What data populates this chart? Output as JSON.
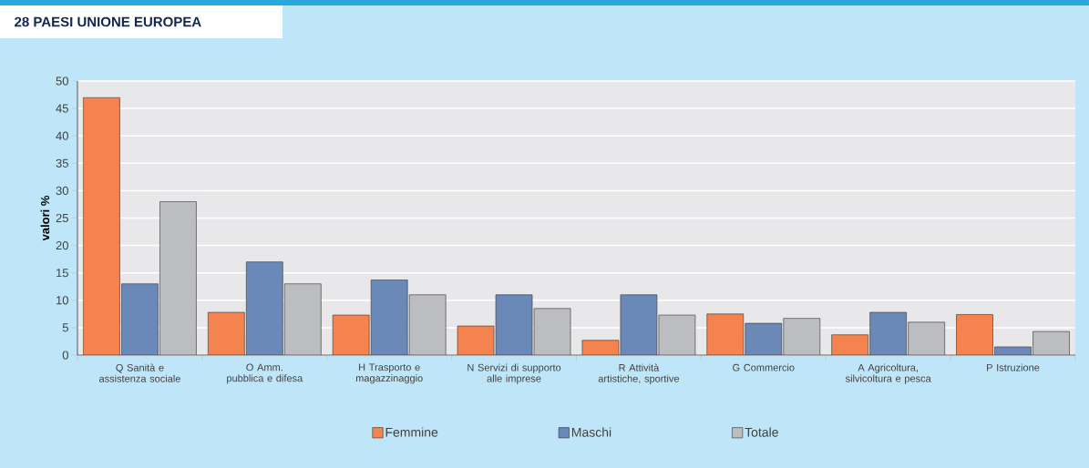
{
  "chart_data": {
    "type": "bar",
    "title": "28 PAESI UNIONE EUROPEA",
    "ylabel": "valori %",
    "categories": [
      "Q Sanità e assistenza sociale",
      "O Amm. pubblica e difesa",
      "H Trasporto e magazzinaggio",
      "N Servizi di supporto alle imprese",
      "R Attività artistiche, sportive",
      "G Commercio",
      "A Agricoltura, silvicoltura e pesca",
      "P Istruzione"
    ],
    "series": [
      {
        "name": "Femmine",
        "color": "#f4834f",
        "values": [
          47,
          7.8,
          7.3,
          5.3,
          2.7,
          7.5,
          3.7,
          7.4
        ]
      },
      {
        "name": "Maschi",
        "color": "#6b89b8",
        "values": [
          13,
          17,
          13.7,
          11,
          11,
          5.8,
          7.8,
          1.5
        ]
      },
      {
        "name": "Totale",
        "color": "#bcbdc1",
        "values": [
          28,
          13,
          11,
          8.5,
          7.3,
          6.7,
          6,
          4.3
        ]
      }
    ],
    "ylim": [
      0,
      50
    ],
    "yticks": [
      0,
      5,
      10,
      15,
      20,
      25,
      30,
      35,
      40,
      45,
      50
    ],
    "grid": "y",
    "legend": "bottom"
  }
}
